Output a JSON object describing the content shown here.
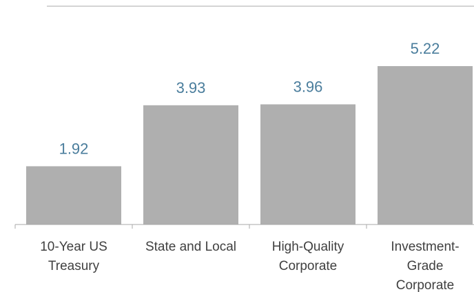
{
  "chart_data": {
    "type": "bar",
    "categories": [
      [
        "10-Year US",
        "Treasury"
      ],
      [
        "State and Local"
      ],
      [
        "High-Quality",
        "Corporate"
      ],
      [
        "Investment-",
        "Grade",
        "Corporate"
      ]
    ],
    "values": [
      1.92,
      3.93,
      3.96,
      5.22
    ],
    "value_labels": [
      "1.92",
      "3.93",
      "3.96",
      "5.22"
    ],
    "title": "",
    "xlabel": "",
    "ylabel": "",
    "ylim": [
      0,
      5.22
    ],
    "grid": false,
    "legend": "none",
    "colors": {
      "bar": "#afafaf",
      "value_label": "#4a7d9c",
      "category_label": "#404040",
      "axis": "#a8a8a8"
    }
  }
}
